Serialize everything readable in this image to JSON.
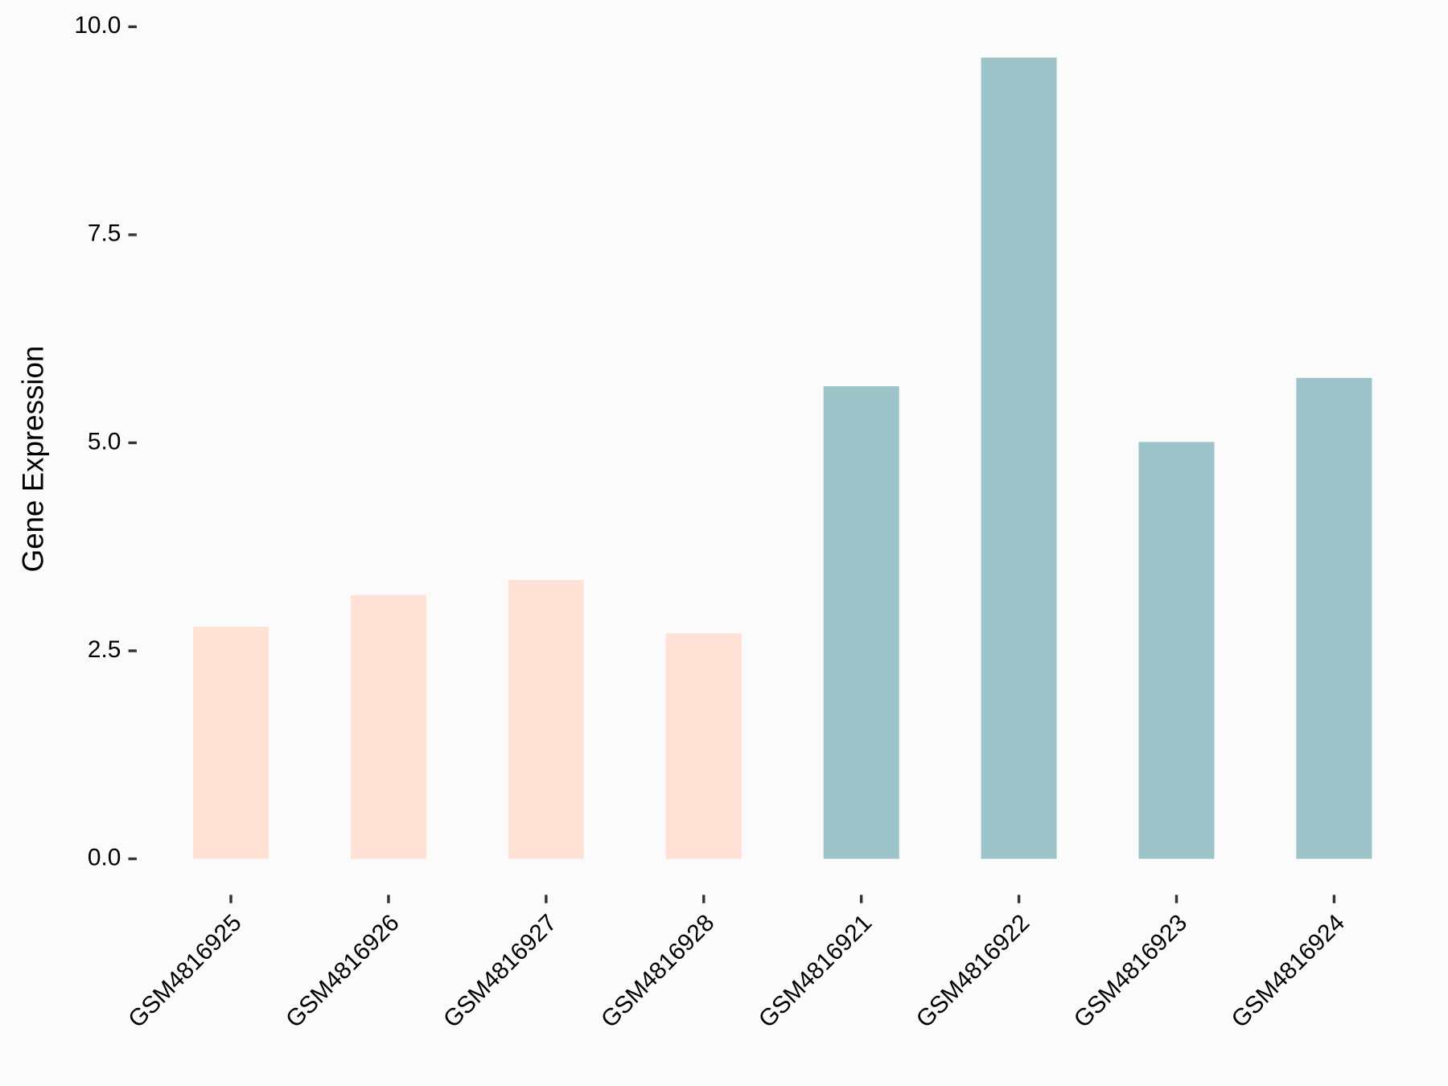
{
  "chart_data": {
    "type": "bar",
    "y_label": "Gene Expression",
    "categories": [
      "GSM4816925",
      "GSM4816926",
      "GSM4816927",
      "GSM4816928",
      "GSM4816921",
      "GSM4816922",
      "GSM4816923",
      "GSM4816924"
    ],
    "values": [
      2.79,
      3.17,
      3.35,
      2.71,
      5.68,
      9.63,
      5.01,
      5.78
    ],
    "colors": [
      "#ffe1d6",
      "#ffe1d6",
      "#ffe1d6",
      "#ffe1d6",
      "#9dc4c8",
      "#9dc4c8",
      "#9dc4c8",
      "#9dc4c8"
    ],
    "ylim": [
      0,
      10
    ],
    "yticks": [
      {
        "value": 0,
        "label": "0.0"
      },
      2.5,
      {
        "value": 5,
        "label": "5.0"
      },
      7.5,
      {
        "value": 10,
        "label": "10.0"
      }
    ]
  }
}
